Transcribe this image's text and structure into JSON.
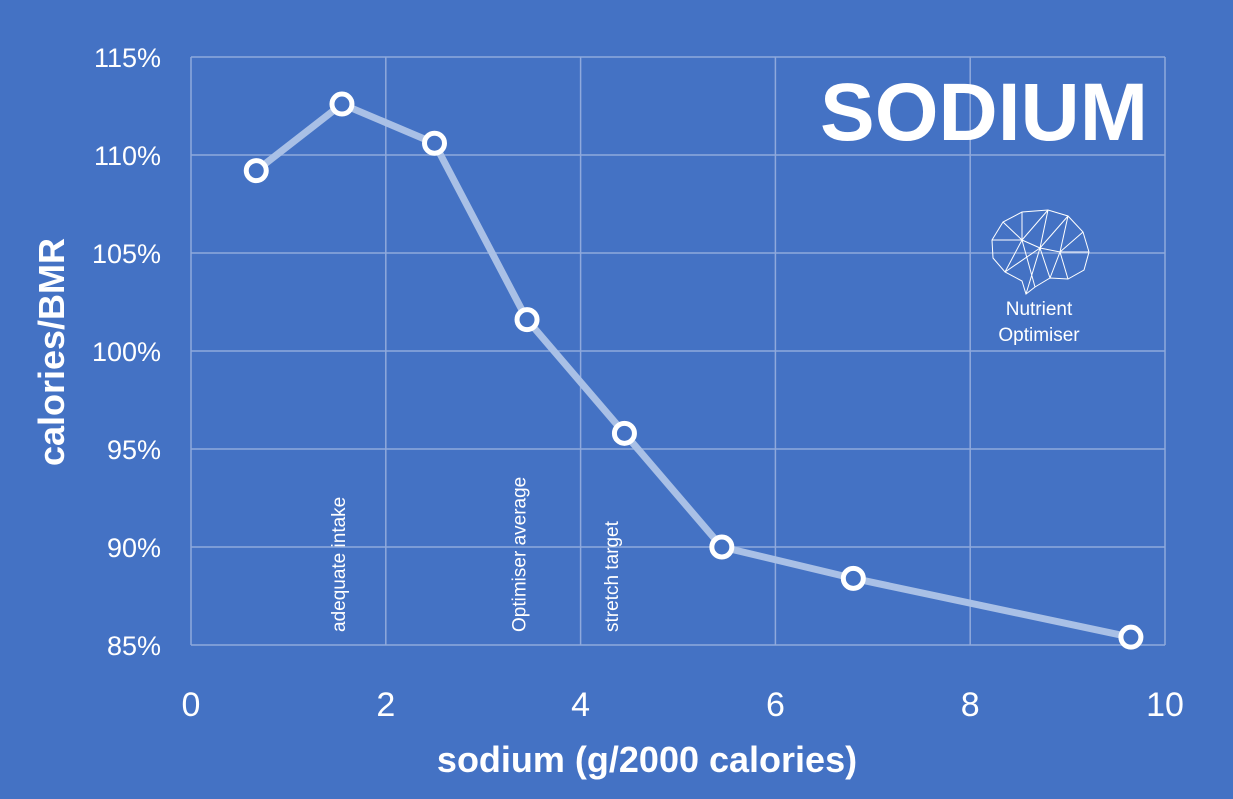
{
  "chart_data": {
    "type": "line",
    "title": "SODIUM",
    "xlabel": "sodium (g/2000 calories)",
    "ylabel": "calories/BMR",
    "xlim": [
      0,
      10
    ],
    "ylim": [
      85,
      115
    ],
    "x_ticks": [
      0,
      2,
      4,
      6,
      8,
      10
    ],
    "y_ticks": [
      85,
      90,
      95,
      100,
      105,
      110,
      115
    ],
    "y_tick_labels": [
      "85%",
      "90%",
      "95%",
      "100%",
      "105%",
      "110%",
      "115%"
    ],
    "grid": true,
    "series": [
      {
        "x": [
          0.67,
          1.55,
          2.5,
          3.45,
          4.45,
          5.45,
          6.8,
          9.65
        ],
        "y": [
          109.2,
          112.6,
          110.6,
          101.6,
          95.8,
          90.0,
          88.4,
          85.4
        ]
      }
    ],
    "annotations": [
      {
        "text": "adequate intake",
        "x": 1.5
      },
      {
        "text": "Optimiser average",
        "x": 3.35
      },
      {
        "text": "stretch target",
        "x": 4.3
      }
    ],
    "colors": {
      "background": "#4472C4",
      "line": "#A9C0E6",
      "marker_fill": "#4472C4",
      "marker_stroke": "#FFFFFF",
      "grid": "#8FA9DC"
    }
  },
  "logo": {
    "line1": "Nutrient",
    "line2": "Optimiser",
    "icon": "brain-network-icon"
  }
}
